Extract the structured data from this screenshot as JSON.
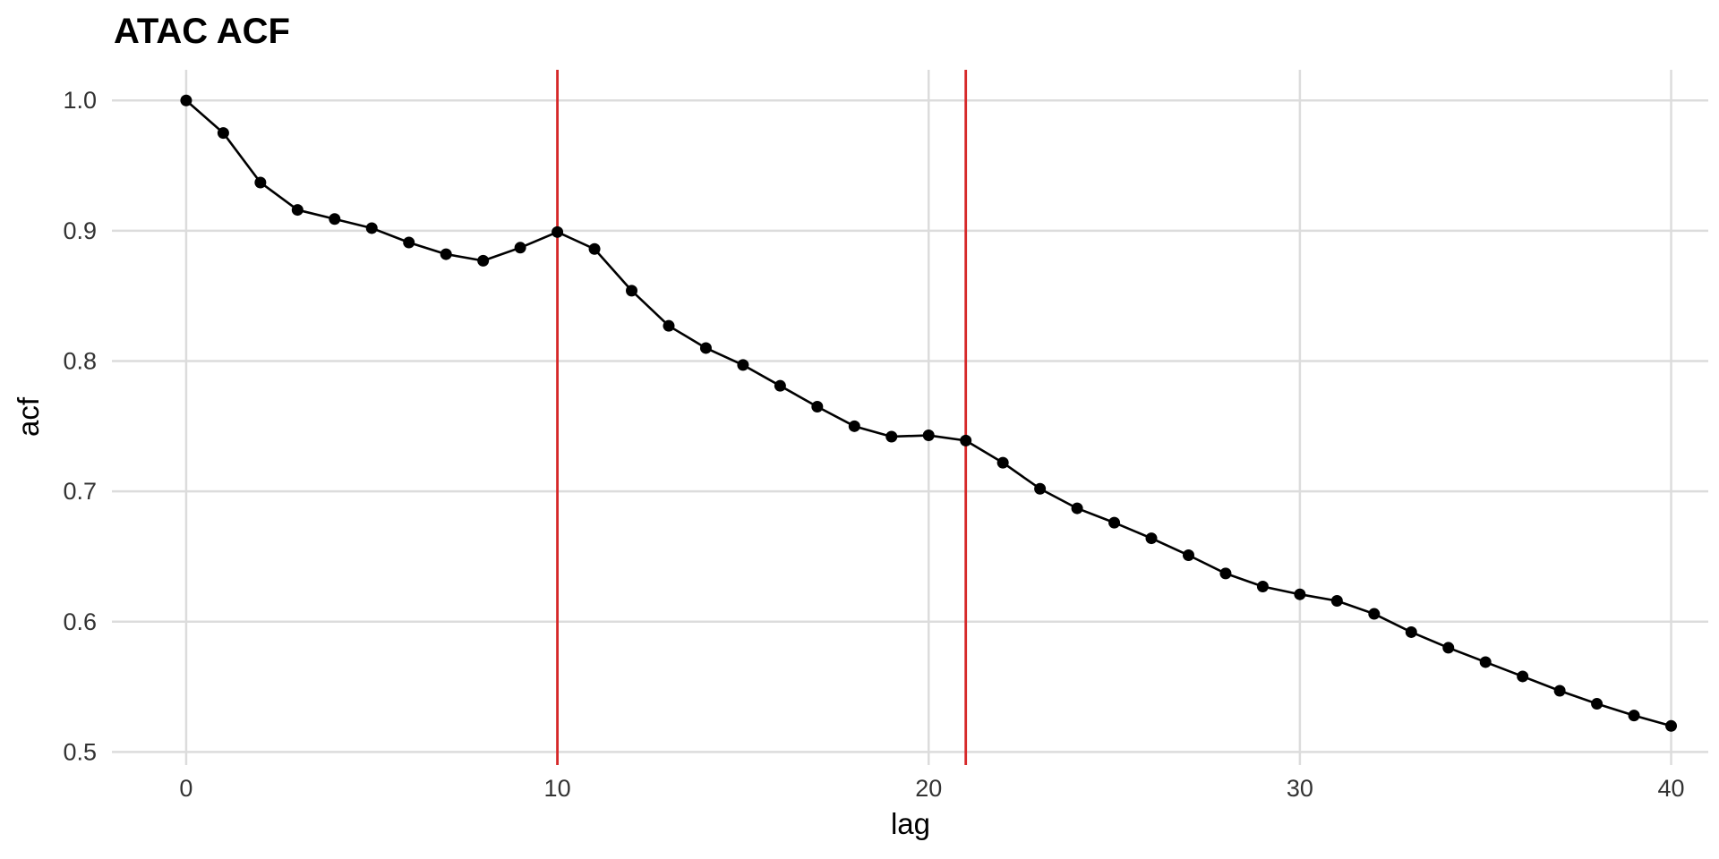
{
  "chart_data": {
    "type": "line",
    "title": "ATAC ACF",
    "xlabel": "lag",
    "ylabel": "acf",
    "xlim": [
      -2,
      41
    ],
    "ylim": [
      0.49,
      1.0235
    ],
    "x_ticks": [
      0,
      10,
      20,
      30,
      40
    ],
    "y_ticks": [
      0.5,
      0.6,
      0.7,
      0.8,
      0.9,
      1.0
    ],
    "y_tick_labels": [
      "0.5",
      "0.6",
      "0.7",
      "0.8",
      "0.9",
      "1.0"
    ],
    "grid": true,
    "legend": "none",
    "series": [
      {
        "color": "#000000",
        "x": [
          0,
          1,
          2,
          3,
          4,
          5,
          6,
          7,
          8,
          9,
          10,
          11,
          12,
          13,
          14,
          15,
          16,
          17,
          18,
          19,
          20,
          21,
          22,
          23,
          24,
          25,
          26,
          27,
          28,
          29,
          30,
          31,
          32,
          33,
          34,
          35,
          36,
          37,
          38,
          39,
          40
        ],
        "values": [
          1.0,
          0.975,
          0.937,
          0.916,
          0.909,
          0.902,
          0.891,
          0.882,
          0.877,
          0.887,
          0.899,
          0.886,
          0.854,
          0.827,
          0.81,
          0.797,
          0.781,
          0.765,
          0.75,
          0.742,
          0.743,
          0.739,
          0.722,
          0.702,
          0.687,
          0.676,
          0.664,
          0.651,
          0.637,
          0.627,
          0.621,
          0.616,
          0.606,
          0.592,
          0.58,
          0.569,
          0.558,
          0.547,
          0.537,
          0.528,
          0.52
        ]
      }
    ],
    "reference_lines": [
      {
        "axis": "x",
        "value": 10,
        "color": "#d62728"
      },
      {
        "axis": "x",
        "value": 21,
        "color": "#d62728"
      }
    ]
  }
}
